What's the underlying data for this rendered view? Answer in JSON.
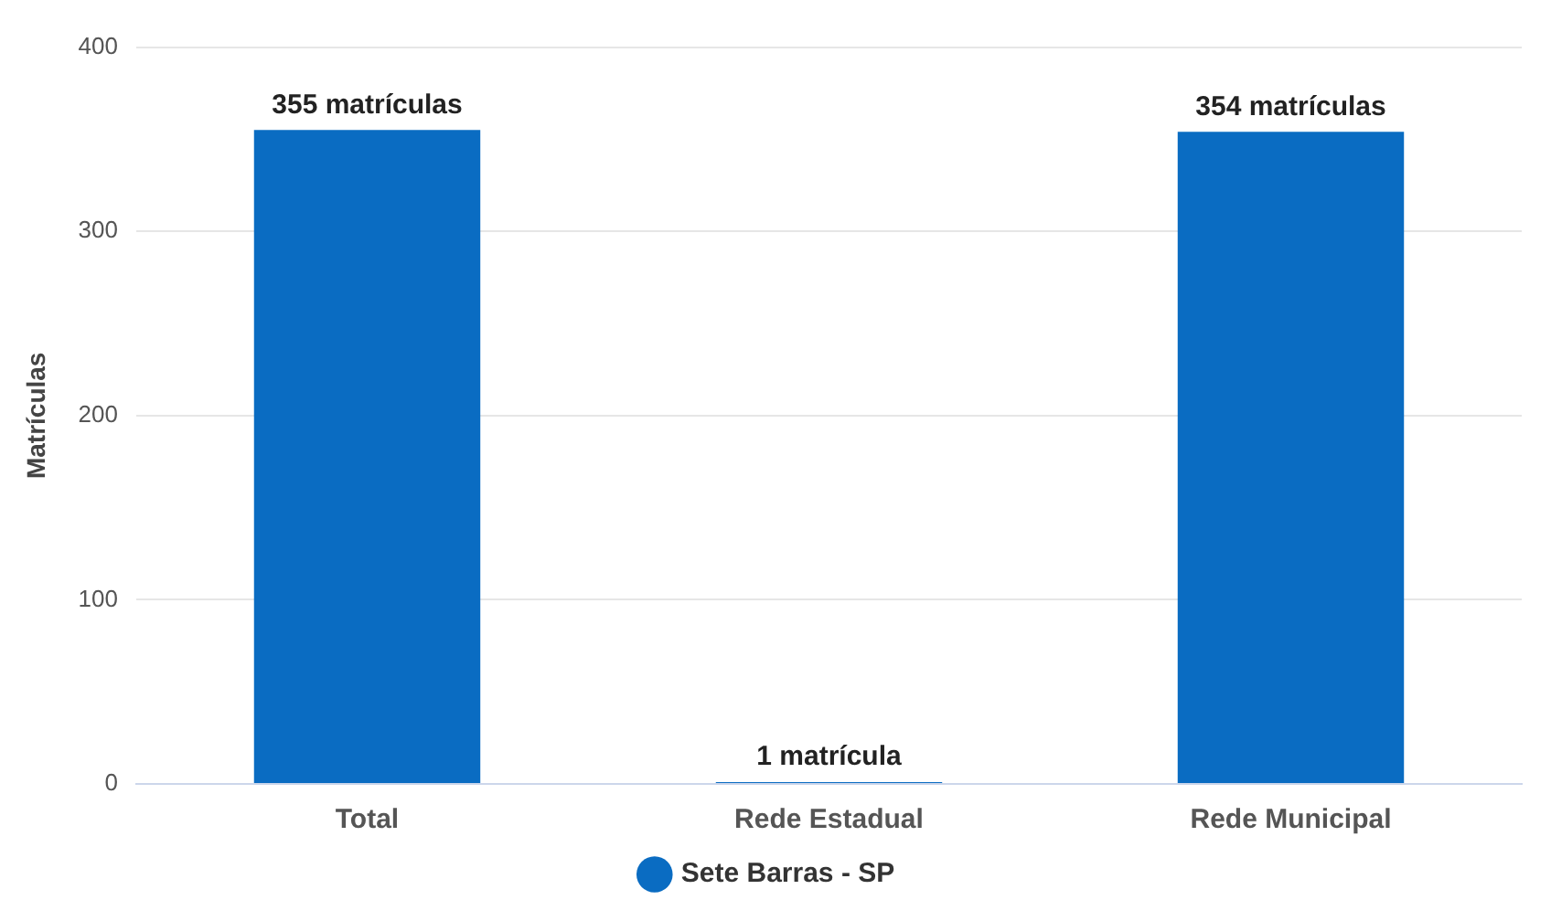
{
  "chart_data": {
    "type": "bar",
    "ylabel": "Matrículas",
    "categories": [
      "Total",
      "Rede Estadual",
      "Rede Municipal"
    ],
    "series": [
      {
        "name": "Sete Barras - SP",
        "color": "#0a6cc2",
        "values": [
          355,
          1,
          354
        ],
        "value_labels": [
          "355 matrículas",
          "1 matrícula",
          "354 matrículas"
        ]
      }
    ],
    "ylim": [
      0,
      400
    ],
    "yticks": [
      0,
      100,
      200,
      300,
      400
    ],
    "grid": "y",
    "legend": "bottom"
  }
}
